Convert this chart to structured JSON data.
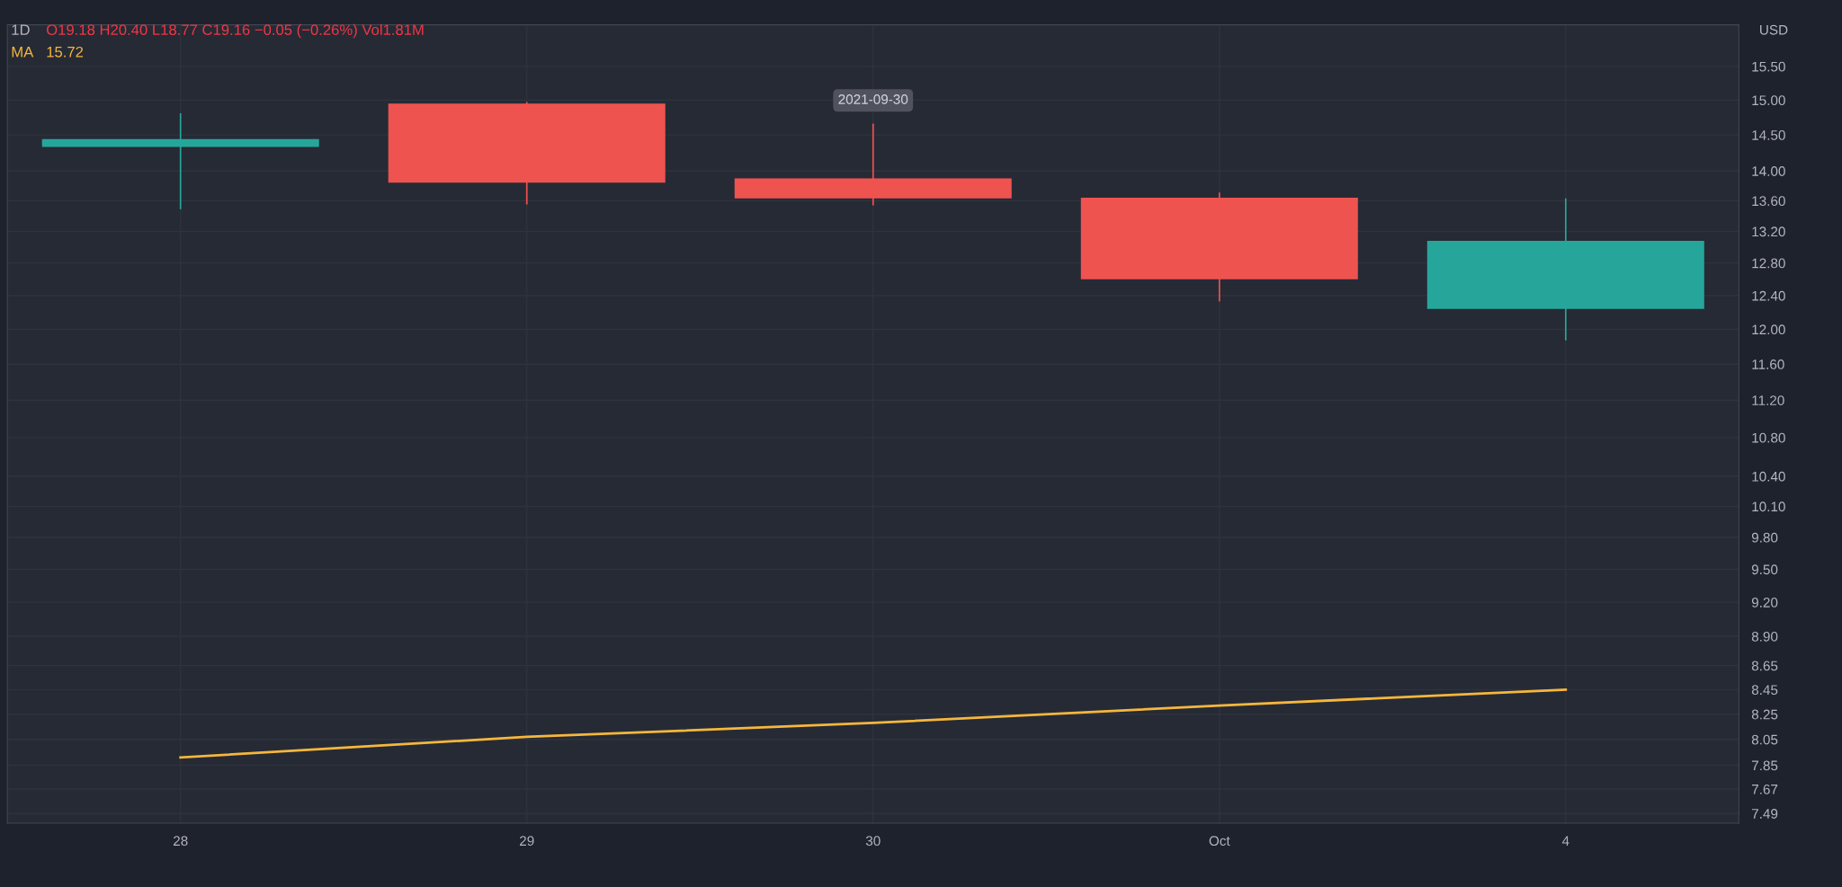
{
  "chart_data": {
    "type": "candlestick",
    "title": "1D",
    "categories": [
      "28",
      "29",
      "30",
      "Oct",
      "4"
    ],
    "ohlc": [
      [
        14.33,
        14.8,
        13.5,
        14.44
      ],
      [
        14.95,
        14.96,
        13.56,
        13.84
      ],
      [
        13.9,
        14.65,
        13.55,
        13.63
      ],
      [
        13.64,
        13.7,
        12.34,
        12.6
      ],
      [
        12.24,
        13.62,
        11.88,
        13.08
      ]
    ],
    "colors": [
      "#26a69a",
      "#ef5350",
      "#ef5350",
      "#ef5350",
      "#26a69a"
    ],
    "series": [
      {
        "name": "MA",
        "type": "line",
        "color": "#f6b73c",
        "values": [
          7.91,
          8.07,
          8.18,
          8.32,
          8.45
        ]
      }
    ],
    "ylabel": "USD",
    "log": "y",
    "ylim": [
      7.42,
      16.14
    ],
    "yticks": [
      {
        "value": 7.49,
        "label": "7.49"
      },
      {
        "value": 7.67,
        "label": "7.67"
      },
      {
        "value": 7.85,
        "label": "7.85"
      },
      {
        "value": 8.05,
        "label": "8.05"
      },
      {
        "value": 8.25,
        "label": "8.25"
      },
      {
        "value": 8.45,
        "label": "8.45"
      },
      {
        "value": 8.65,
        "label": "8.65"
      },
      {
        "value": 8.9,
        "label": "8.90"
      },
      {
        "value": 9.2,
        "label": "9.20"
      },
      {
        "value": 9.5,
        "label": "9.50"
      },
      {
        "value": 9.8,
        "label": "9.80"
      },
      {
        "value": 10.1,
        "label": "10.10"
      },
      {
        "value": 10.4,
        "label": "10.40"
      },
      {
        "value": 10.8,
        "label": "10.80"
      },
      {
        "value": 11.2,
        "label": "11.20"
      },
      {
        "value": 11.6,
        "label": "11.60"
      },
      {
        "value": 12,
        "label": "12.00"
      },
      {
        "value": 12.4,
        "label": "12.40"
      },
      {
        "value": 12.8,
        "label": "12.80"
      },
      {
        "value": 13.2,
        "label": "13.20"
      },
      {
        "value": 13.6,
        "label": "13.60"
      },
      {
        "value": 14,
        "label": "14.00"
      },
      {
        "value": 14.5,
        "label": "14.50"
      },
      {
        "value": 15,
        "label": "15.00"
      },
      {
        "value": 15.5,
        "label": "15.50"
      }
    ],
    "grid": true,
    "annotations": [
      "O19.18 H20.40 L18.77 C19.16 −0.05 (−0.26%) Vol1.81M",
      "15.72",
      {
        "text": "2021-09-30",
        "x": "30",
        "y": 14.65
      }
    ]
  }
}
